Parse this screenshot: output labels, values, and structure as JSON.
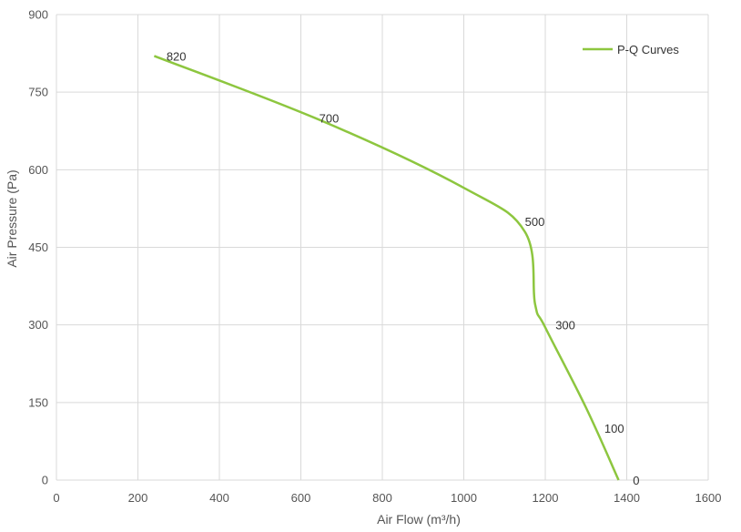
{
  "chart_data": {
    "type": "line",
    "title": "",
    "xlabel": "Air Flow  (m³/h)",
    "ylabel": "Air Pressure  (Pa)",
    "xlim": [
      0,
      1600
    ],
    "ylim": [
      0,
      900
    ],
    "x_ticks": [
      0,
      200,
      400,
      600,
      800,
      1000,
      1200,
      1400,
      1600
    ],
    "y_ticks": [
      0,
      150,
      300,
      450,
      600,
      750,
      900
    ],
    "grid": true,
    "legend_position": "top-right",
    "series": [
      {
        "name": "P-Q Curves",
        "color": "#8dc63f",
        "points": [
          {
            "x": 240,
            "y": 820
          },
          {
            "x": 650,
            "y": 695
          },
          {
            "x": 1000,
            "y": 565
          },
          {
            "x": 1150,
            "y": 480
          },
          {
            "x": 1175,
            "y": 340
          },
          {
            "x": 1200,
            "y": 295
          },
          {
            "x": 1300,
            "y": 140
          },
          {
            "x": 1380,
            "y": 0
          }
        ],
        "point_labels": [
          {
            "text": "820",
            "x": 270,
            "y": 820
          },
          {
            "text": "700",
            "x": 645,
            "y": 700
          },
          {
            "text": "500",
            "x": 1150,
            "y": 500
          },
          {
            "text": "300",
            "x": 1225,
            "y": 300
          },
          {
            "text": "100",
            "x": 1345,
            "y": 100
          },
          {
            "text": "0",
            "x": 1415,
            "y": 0
          }
        ]
      }
    ]
  }
}
